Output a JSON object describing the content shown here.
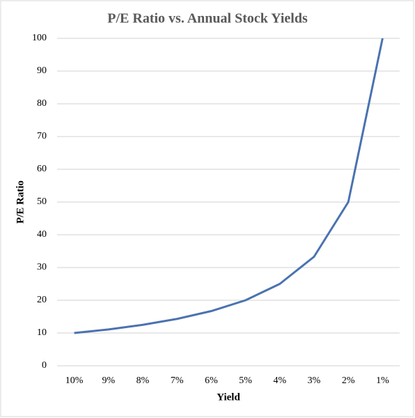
{
  "chart_data": {
    "type": "line",
    "title": "P/E Ratio vs. Annual Stock Yields",
    "x_label": "Yield",
    "y_label": "P/E Ratio",
    "categories": [
      "10%",
      "9%",
      "8%",
      "7%",
      "6%",
      "5%",
      "4%",
      "3%",
      "2%",
      "1%"
    ],
    "values": [
      10,
      11.1,
      12.5,
      14.3,
      16.7,
      20,
      25,
      33.3,
      50,
      100
    ],
    "color": "#4a72b0",
    "ylim": [
      0,
      100
    ],
    "yticks": [
      0,
      10,
      20,
      30,
      40,
      50,
      60,
      70,
      80,
      90,
      100
    ],
    "grid": true
  }
}
